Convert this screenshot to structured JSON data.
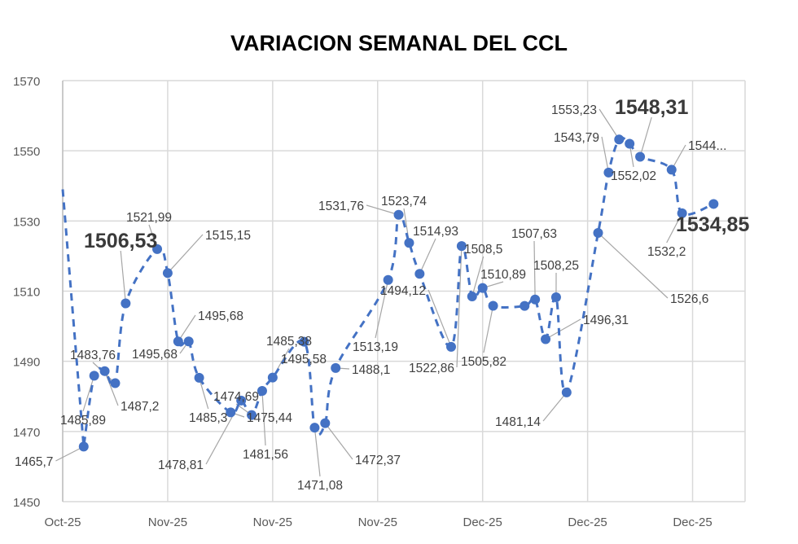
{
  "chart_data": {
    "type": "line",
    "title": "VARIACION SEMANAL DEL CCL",
    "xlabel": "",
    "ylabel": "",
    "ylim": [
      1450,
      1570
    ],
    "yticks": [
      1450,
      1470,
      1490,
      1510,
      1530,
      1550,
      1570
    ],
    "xlim": [
      "2025-10-25",
      "2025-12-29"
    ],
    "xticks": [
      {
        "date": "2025-10-25",
        "label": "Oct-25"
      },
      {
        "date": "2025-11-04",
        "label": "Nov-25"
      },
      {
        "date": "2025-11-14",
        "label": "Nov-25"
      },
      {
        "date": "2025-11-24",
        "label": "Nov-25"
      },
      {
        "date": "2025-12-04",
        "label": "Dec-25"
      },
      {
        "date": "2025-12-14",
        "label": "Dec-25"
      },
      {
        "date": "2025-12-24",
        "label": "Dec-25"
      }
    ],
    "grid": true,
    "line_style": "dashed",
    "series_color": "#4472C4",
    "points": [
      {
        "date": "2025-10-27",
        "value": 1465.7,
        "label": "1465,7"
      },
      {
        "date": "2025-10-28",
        "value": 1485.89,
        "label": "1485,89"
      },
      {
        "date": "2025-10-29",
        "value": 1487.2,
        "label": "1487,2"
      },
      {
        "date": "2025-10-30",
        "value": 1483.76,
        "label": "1483,76"
      },
      {
        "date": "2025-10-31",
        "value": 1506.53,
        "label": "1506,53",
        "highlight": true
      },
      {
        "date": "2025-11-03",
        "value": 1521.99,
        "label": "1521,99"
      },
      {
        "date": "2025-11-04",
        "value": 1515.15,
        "label": "1515,15"
      },
      {
        "date": "2025-11-05",
        "value": 1495.68,
        "label": "1495,68"
      },
      {
        "date": "2025-11-06",
        "value": 1495.68,
        "label": "1495,68"
      },
      {
        "date": "2025-11-07",
        "value": 1485.3,
        "label": "1485,3"
      },
      {
        "date": "2025-11-10",
        "value": 1475.44,
        "label": "1475,44"
      },
      {
        "date": "2025-11-11",
        "value": 1478.81,
        "label": "1478,81"
      },
      {
        "date": "2025-11-12",
        "value": 1474.69,
        "label": "1474,69"
      },
      {
        "date": "2025-11-13",
        "value": 1481.56,
        "label": "1481,56"
      },
      {
        "date": "2025-11-14",
        "value": 1485.38,
        "label": "1485,38"
      },
      {
        "date": "2025-11-17",
        "value": 1495.58,
        "label": "1495,58"
      },
      {
        "date": "2025-11-18",
        "value": 1471.08,
        "label": "1471,08"
      },
      {
        "date": "2025-11-19",
        "value": 1472.37,
        "label": "1472,37"
      },
      {
        "date": "2025-11-20",
        "value": 1488.1,
        "label": "1488,1"
      },
      {
        "date": "2025-11-25",
        "value": 1513.19,
        "label": "1513,19"
      },
      {
        "date": "2025-11-26",
        "value": 1531.76,
        "label": "1531,76"
      },
      {
        "date": "2025-11-27",
        "value": 1523.74,
        "label": "1523,74"
      },
      {
        "date": "2025-11-28",
        "value": 1514.93,
        "label": "1514,93"
      },
      {
        "date": "2025-12-01",
        "value": 1494.12,
        "label": "1494,12"
      },
      {
        "date": "2025-12-02",
        "value": 1522.86,
        "label": "1522,86"
      },
      {
        "date": "2025-12-03",
        "value": 1508.5,
        "label": "1508,5"
      },
      {
        "date": "2025-12-04",
        "value": 1510.89,
        "label": "1510,89"
      },
      {
        "date": "2025-12-05",
        "value": 1505.82,
        "label": "1505,82"
      },
      {
        "date": "2025-12-08",
        "value": 1505.8,
        "label": ""
      },
      {
        "date": "2025-12-09",
        "value": 1507.63,
        "label": "1507,63"
      },
      {
        "date": "2025-12-10",
        "value": 1496.31,
        "label": "1496,31"
      },
      {
        "date": "2025-12-11",
        "value": 1508.25,
        "label": "1508,25"
      },
      {
        "date": "2025-12-12",
        "value": 1481.14,
        "label": "1481,14"
      },
      {
        "date": "2025-12-15",
        "value": 1526.6,
        "label": "1526,6"
      },
      {
        "date": "2025-12-16",
        "value": 1543.79,
        "label": "1543,79"
      },
      {
        "date": "2025-12-17",
        "value": 1553.23,
        "label": "1553,23"
      },
      {
        "date": "2025-12-18",
        "value": 1552.02,
        "label": "1552,02"
      },
      {
        "date": "2025-12-19",
        "value": 1548.31,
        "label": "1548,31",
        "highlight": true
      },
      {
        "date": "2025-12-22",
        "value": 1544.6,
        "label": "1544..."
      },
      {
        "date": "2025-12-23",
        "value": 1532.2,
        "label": "1532,2"
      },
      {
        "date": "2025-12-26",
        "value": 1534.85,
        "label": "1534,85",
        "highlight": true
      }
    ]
  }
}
